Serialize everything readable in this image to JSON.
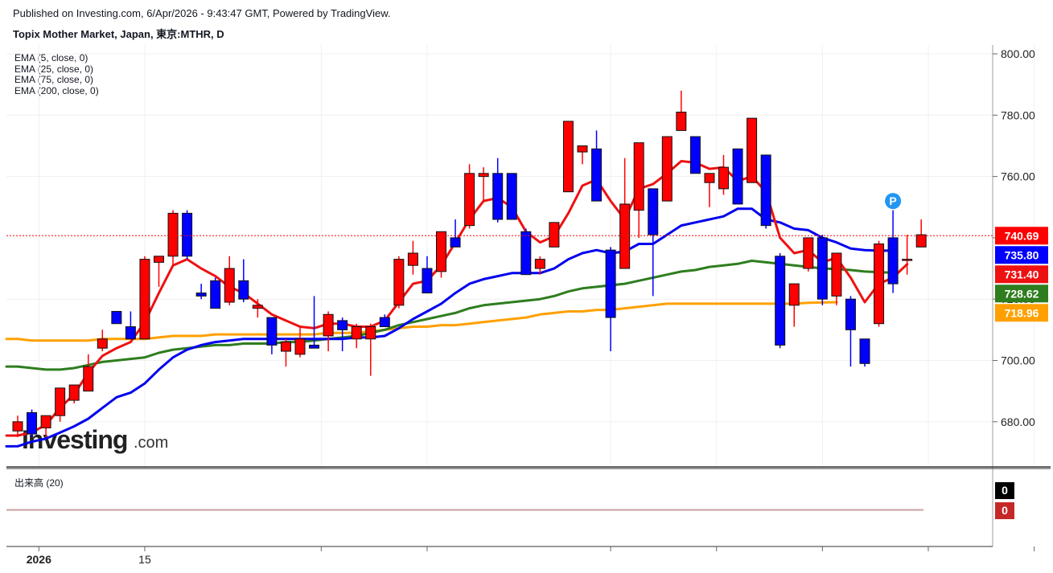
{
  "header": {
    "published": "Published on Investing.com, 6/Apr/2026 - 9:43:47 GMT, Powered by TradingView.",
    "title": "Topix Mother Market, Japan, 東京:MTHR, D"
  },
  "legend": [
    {
      "label": "EMA (5, close, 0)"
    },
    {
      "label": "EMA (25, close, 0)"
    },
    {
      "label": "EMA (75, close, 0)"
    },
    {
      "label": "EMA (200, close, 0)"
    }
  ],
  "volume_panel": {
    "label": "出来高 (20)",
    "badges": [
      {
        "value": "0",
        "color": "#000000"
      },
      {
        "value": "0",
        "color": "#c62828"
      }
    ]
  },
  "watermark": {
    "brand": "Investing",
    "suffix": ".com"
  },
  "chart_data": {
    "type": "candlestick",
    "ylim": [
      664,
      802
    ],
    "y_ticks": [
      680,
      700,
      720,
      740,
      760,
      780,
      800
    ],
    "y_tick_labels": [
      "680.00",
      "700.00",
      "720.00",
      "740.00",
      "760.00",
      "780.00",
      "800.00"
    ],
    "x_labels": [
      {
        "label": "2026",
        "index": 1.5
      },
      {
        "label": "15",
        "index": 9
      },
      {
        "label": "",
        "index": 21.5
      },
      {
        "label": "",
        "index": 29
      },
      {
        "label": "",
        "index": 42
      },
      {
        "label": "",
        "index": 49.5
      },
      {
        "label": "",
        "index": 57
      },
      {
        "label": "",
        "index": 64.5
      },
      {
        "label": "",
        "index": 72
      }
    ],
    "price_line": 740.69,
    "colors": {
      "up": "#ff0000",
      "down": "#0000ff",
      "ema5": "#ee1111",
      "ema25": "#0000ee",
      "ema75": "#2e7d1e",
      "ema200": "#ffa000"
    },
    "candles": [
      {
        "o": 677,
        "h": 682,
        "l": 675,
        "c": 680
      },
      {
        "o": 683,
        "h": 684,
        "l": 675,
        "c": 676
      },
      {
        "o": 678,
        "h": 682,
        "l": 675,
        "c": 682
      },
      {
        "o": 682,
        "h": 691,
        "l": 680,
        "c": 691
      },
      {
        "o": 687,
        "h": 692,
        "l": 686,
        "c": 692
      },
      {
        "o": 690,
        "h": 702,
        "l": 690,
        "c": 698
      },
      {
        "o": 704,
        "h": 710,
        "l": 703,
        "c": 707
      },
      {
        "o": 716,
        "h": 716,
        "l": 712,
        "c": 712
      },
      {
        "o": 711,
        "h": 716,
        "l": 707,
        "c": 707
      },
      {
        "o": 707,
        "h": 734,
        "l": 707,
        "c": 733
      },
      {
        "o": 732,
        "h": 734,
        "l": 724,
        "c": 734
      },
      {
        "o": 734,
        "h": 749,
        "l": 731,
        "c": 748
      },
      {
        "o": 748,
        "h": 749,
        "l": 733,
        "c": 734
      },
      {
        "o": 722,
        "h": 725,
        "l": 720,
        "c": 721
      },
      {
        "o": 726,
        "h": 727,
        "l": 717,
        "c": 717
      },
      {
        "o": 719,
        "h": 734,
        "l": 718,
        "c": 730
      },
      {
        "o": 726,
        "h": 733,
        "l": 719,
        "c": 720
      },
      {
        "o": 717,
        "h": 720,
        "l": 714,
        "c": 718
      },
      {
        "o": 714,
        "h": 714,
        "l": 702,
        "c": 705
      },
      {
        "o": 703,
        "h": 707,
        "l": 698,
        "c": 706
      },
      {
        "o": 702,
        "h": 711,
        "l": 701,
        "c": 707
      },
      {
        "o": 705,
        "h": 721,
        "l": 704,
        "c": 704
      },
      {
        "o": 708,
        "h": 716,
        "l": 703,
        "c": 715
      },
      {
        "o": 713,
        "h": 714,
        "l": 703,
        "c": 710
      },
      {
        "o": 707,
        "h": 712,
        "l": 704,
        "c": 711
      },
      {
        "o": 707,
        "h": 712,
        "l": 695,
        "c": 711
      },
      {
        "o": 714,
        "h": 715,
        "l": 711,
        "c": 711
      },
      {
        "o": 718,
        "h": 734,
        "l": 717,
        "c": 733
      },
      {
        "o": 731,
        "h": 739,
        "l": 728,
        "c": 735
      },
      {
        "o": 730,
        "h": 734,
        "l": 722,
        "c": 722
      },
      {
        "o": 729,
        "h": 742,
        "l": 727,
        "c": 742
      },
      {
        "o": 740,
        "h": 746,
        "l": 737,
        "c": 737
      },
      {
        "o": 744,
        "h": 764,
        "l": 743,
        "c": 761
      },
      {
        "o": 760,
        "h": 763,
        "l": 752,
        "c": 761
      },
      {
        "o": 761,
        "h": 766,
        "l": 745,
        "c": 746
      },
      {
        "o": 761,
        "h": 761,
        "l": 746,
        "c": 746
      },
      {
        "o": 742,
        "h": 743,
        "l": 728,
        "c": 728
      },
      {
        "o": 730,
        "h": 734,
        "l": 728,
        "c": 733
      },
      {
        "o": 737,
        "h": 745,
        "l": 737,
        "c": 745
      },
      {
        "o": 755,
        "h": 778,
        "l": 755,
        "c": 778
      },
      {
        "o": 768,
        "h": 770,
        "l": 764,
        "c": 770
      },
      {
        "o": 769,
        "h": 775,
        "l": 752,
        "c": 752
      },
      {
        "o": 736,
        "h": 737,
        "l": 703,
        "c": 714
      },
      {
        "o": 730,
        "h": 766,
        "l": 730,
        "c": 751
      },
      {
        "o": 749,
        "h": 771,
        "l": 740,
        "c": 771
      },
      {
        "o": 756,
        "h": 756,
        "l": 721,
        "c": 741
      },
      {
        "o": 752,
        "h": 773,
        "l": 752,
        "c": 773
      },
      {
        "o": 775,
        "h": 788,
        "l": 775,
        "c": 781
      },
      {
        "o": 773,
        "h": 773,
        "l": 761,
        "c": 761
      },
      {
        "o": 758,
        "h": 761,
        "l": 750,
        "c": 761
      },
      {
        "o": 756,
        "h": 767,
        "l": 754,
        "c": 763
      },
      {
        "o": 769,
        "h": 769,
        "l": 751,
        "c": 751
      },
      {
        "o": 758,
        "h": 779,
        "l": 758,
        "c": 779
      },
      {
        "o": 767,
        "h": 767,
        "l": 743,
        "c": 744
      },
      {
        "o": 734,
        "h": 735,
        "l": 704,
        "c": 705
      },
      {
        "o": 718,
        "h": 725,
        "l": 711,
        "c": 725
      },
      {
        "o": 730,
        "h": 740,
        "l": 729,
        "c": 740
      },
      {
        "o": 740,
        "h": 741,
        "l": 718,
        "c": 720
      },
      {
        "o": 721,
        "h": 735,
        "l": 718,
        "c": 735
      },
      {
        "o": 720,
        "h": 721,
        "l": 698,
        "c": 710
      },
      {
        "o": 707,
        "h": 707,
        "l": 698,
        "c": 699
      },
      {
        "o": 712,
        "h": 739,
        "l": 711,
        "c": 738
      },
      {
        "o": 740,
        "h": 749,
        "l": 722,
        "c": 725
      },
      {
        "o": 733,
        "h": 741,
        "l": 728,
        "c": 733
      },
      {
        "o": 737,
        "h": 746,
        "l": 737,
        "c": 741
      }
    ],
    "series": [
      {
        "key": "ema5",
        "values": [
          675.5,
          676.5,
          679,
          684.5,
          689,
          696,
          701.5,
          704,
          706,
          712.5,
          722,
          731,
          733,
          730,
          727.5,
          724,
          722,
          718.5,
          715,
          713,
          711,
          710.5,
          712,
          712,
          711,
          711,
          713,
          719,
          725,
          726,
          731,
          738.5,
          746,
          752,
          753,
          750,
          742,
          738.5,
          740.5,
          748,
          757,
          759,
          752,
          746,
          756,
          757.5,
          761,
          765,
          764.5,
          762.5,
          763,
          758.5,
          760,
          755,
          740,
          735,
          736,
          732,
          733.5,
          727,
          719,
          725,
          727,
          731.4
        ]
      },
      {
        "key": "ema25",
        "values": [
          672,
          673.5,
          674.5,
          676.5,
          678.5,
          681,
          684.5,
          688,
          689.5,
          692.5,
          697,
          701,
          703.5,
          705,
          706,
          706.5,
          707,
          707,
          707,
          707,
          707,
          707,
          707,
          707,
          707.5,
          707.5,
          708,
          710.5,
          713.5,
          716,
          718.5,
          722,
          725,
          726.5,
          727.5,
          728.5,
          728.5,
          728.5,
          730,
          733,
          735,
          736,
          735,
          735.5,
          738,
          738,
          741,
          744,
          745,
          746,
          747,
          749.5,
          749.5,
          746,
          745,
          743,
          742.5,
          740,
          738.5,
          736.5,
          736,
          735.8,
          735.8
        ]
      },
      {
        "key": "ema75",
        "values": [
          698,
          697.5,
          697,
          697,
          697.5,
          698.5,
          699.5,
          700,
          700.5,
          701,
          702.5,
          703.5,
          704,
          704.5,
          705,
          705,
          705.5,
          705.5,
          705.5,
          706,
          706,
          706.5,
          707,
          707.5,
          708,
          709,
          710,
          711.5,
          712.5,
          713.5,
          714.5,
          715.5,
          717,
          718,
          718.5,
          719,
          719.5,
          720,
          721,
          722.5,
          723.5,
          724,
          724.5,
          725,
          726,
          727,
          728,
          729,
          729.5,
          730.5,
          731,
          731.5,
          732.5,
          732,
          731.5,
          731,
          730.5,
          730,
          729.8,
          729.5,
          729,
          728.8,
          728.6
        ]
      },
      {
        "key": "ema200",
        "values": [
          707,
          706.5,
          706.5,
          706.5,
          706.5,
          706.5,
          707,
          707,
          707,
          707,
          707.5,
          708,
          708,
          708,
          708.5,
          708.5,
          708.5,
          708.5,
          708.5,
          708.5,
          708.5,
          708.5,
          709,
          709,
          709,
          709.5,
          710,
          710.5,
          711,
          711,
          711.5,
          711.5,
          712,
          712.5,
          713,
          713.5,
          714,
          715,
          715.5,
          716,
          716,
          716.5,
          716.5,
          717,
          717.5,
          718,
          718.5,
          718.5,
          718.5,
          718.5,
          718.5,
          718.5,
          718.5,
          718.5,
          718.5,
          718.5,
          718.8,
          718.9,
          719
        ]
      }
    ],
    "price_badges": [
      {
        "value": "740.69",
        "y": 740.69,
        "color": "#ff0000"
      },
      {
        "value": "735.80",
        "y": 735.8,
        "color": "#0000ff"
      },
      {
        "value": "731.40",
        "y": 731.4,
        "color": "#ee1111"
      },
      {
        "value": "728.62",
        "y": 728.62,
        "color": "#2e7d1e"
      },
      {
        "value": "718.96",
        "y": 718.96,
        "color": "#ffa000"
      }
    ],
    "marker": {
      "label": "P",
      "index": 62,
      "y": 752,
      "color": "#2196f3"
    }
  }
}
